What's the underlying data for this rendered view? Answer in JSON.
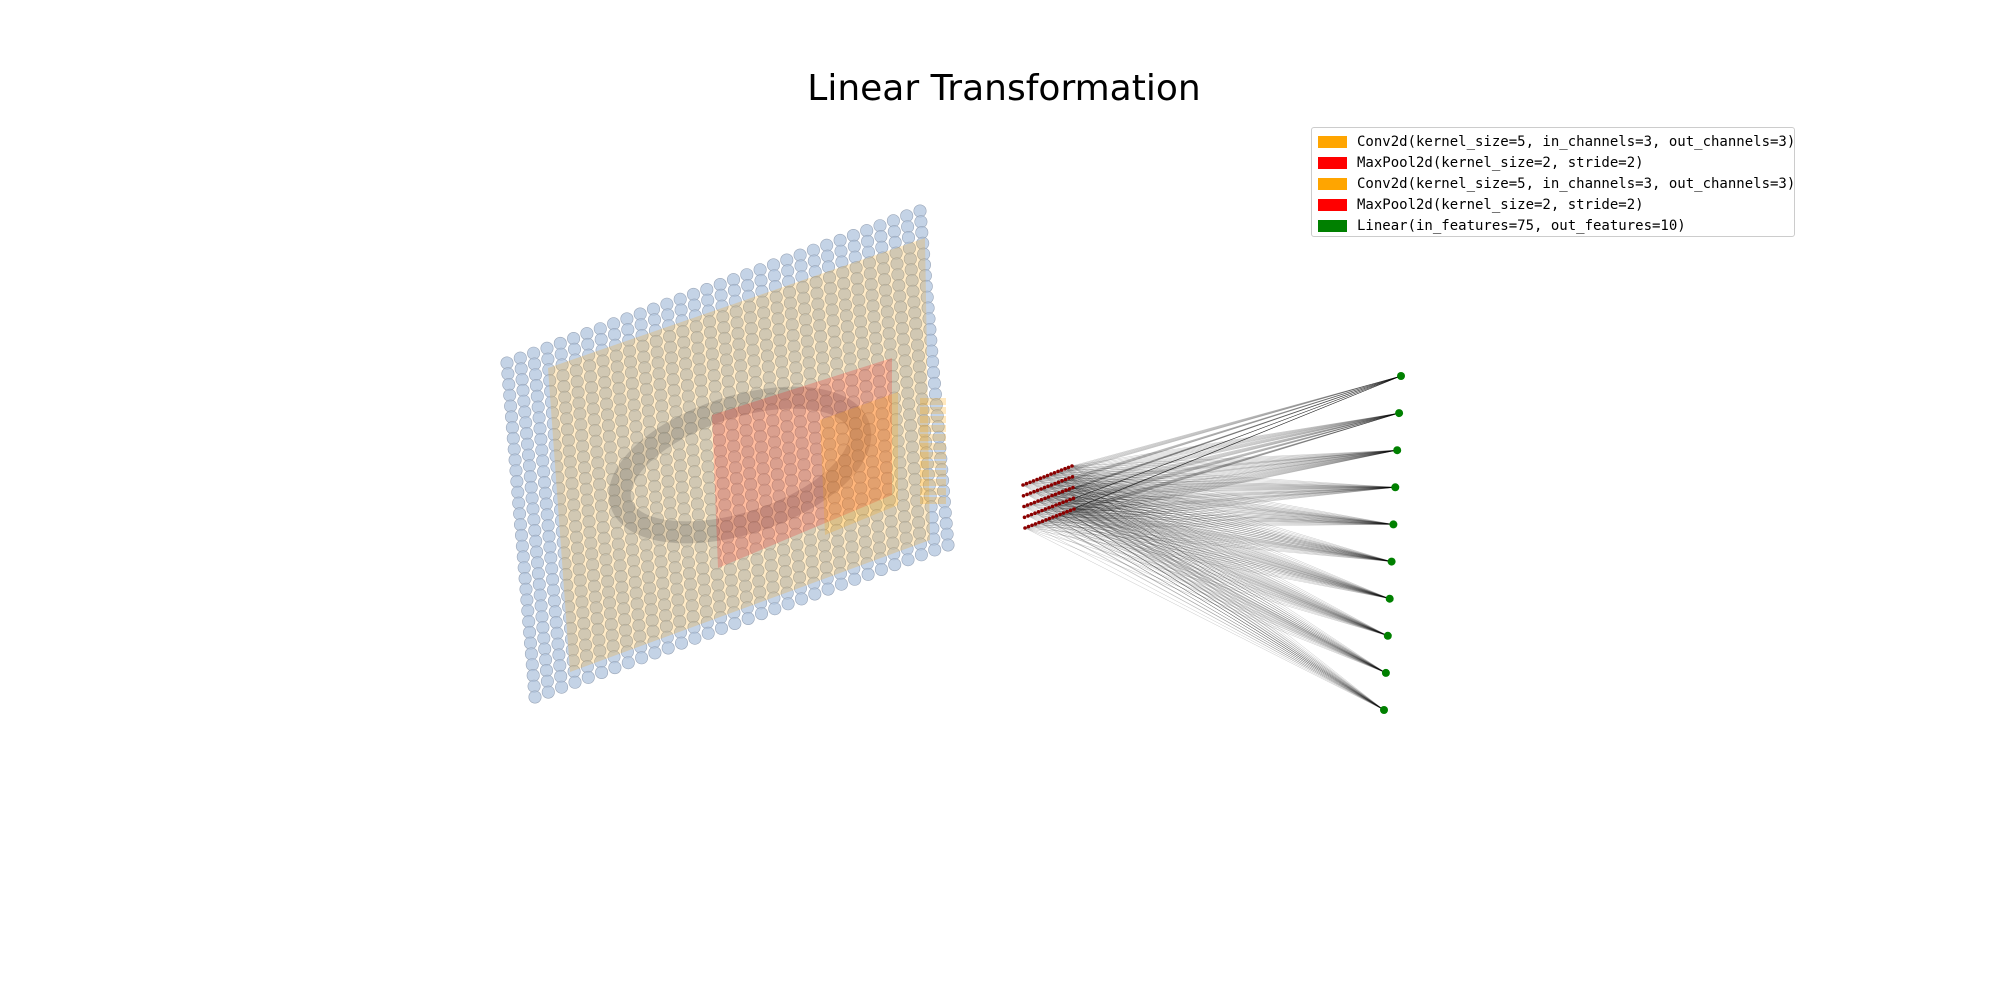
{
  "figure": {
    "title": "Linear Transformation"
  },
  "legend": {
    "items": [
      {
        "label": "Conv2d(kernel_size=5, in_channels=3, out_channels=3)",
        "color": "#ffa500"
      },
      {
        "label": "MaxPool2d(kernel_size=2, stride=2)",
        "color": "#ff0000"
      },
      {
        "label": "Conv2d(kernel_size=5, in_channels=3, out_channels=3)",
        "color": "#ffa500"
      },
      {
        "label": "MaxPool2d(kernel_size=2, stride=2)",
        "color": "#ff0000"
      },
      {
        "label": "Linear(in_features=75, out_features=10)",
        "color": "#008000"
      }
    ]
  },
  "network": {
    "input_grid": {
      "rows": 32,
      "cols": 32,
      "color": "#b0c4de"
    },
    "conv_color": "#ffa500",
    "pool_color": "#ff0000",
    "linear_in_features": 75,
    "linear_out_features": 10,
    "output_node_color": "#008000",
    "input_neuron_color": "#8b0000"
  }
}
